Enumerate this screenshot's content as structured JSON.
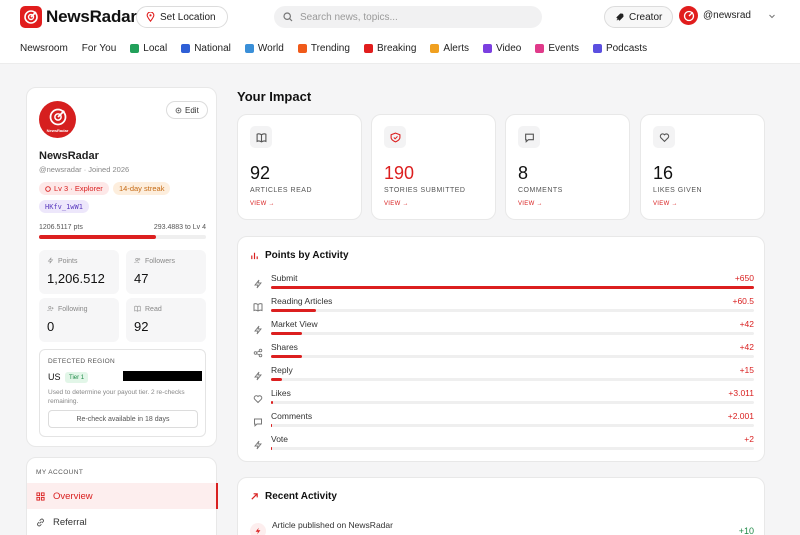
{
  "app": {
    "name": "NewsRadar"
  },
  "header": {
    "location_label": "Set Location",
    "search_placeholder": "Search news, topics...",
    "creator_label": "Creator",
    "user_handle": "@newsrad"
  },
  "nav": [
    {
      "label": "Newsroom",
      "icon": "none",
      "color": ""
    },
    {
      "label": "For You",
      "icon": "none",
      "color": ""
    },
    {
      "label": "Local",
      "icon": "local-icon",
      "color": "#22a05a"
    },
    {
      "label": "National",
      "icon": "flag-icon",
      "color": "#2f5fd6"
    },
    {
      "label": "World",
      "icon": "globe-icon",
      "color": "#3a8fd8"
    },
    {
      "label": "Trending",
      "icon": "fire-icon",
      "color": "#f05a1a"
    },
    {
      "label": "Breaking",
      "icon": "bolt-icon",
      "color": "#e11d1d"
    },
    {
      "label": "Alerts",
      "icon": "alert-icon",
      "color": "#f0a020"
    },
    {
      "label": "Video",
      "icon": "video-icon",
      "color": "#7b3fe0"
    },
    {
      "label": "Events",
      "icon": "calendar-icon",
      "color": "#e03a8a"
    },
    {
      "label": "Podcasts",
      "icon": "mic-icon",
      "color": "#5b4fe0"
    }
  ],
  "profile": {
    "name": "NewsRadar",
    "handle_line": "@newsradar · Joined 2026",
    "edit_label": "Edit",
    "level_badge": "Lv 3 · Explorer",
    "streak_badge": "14-day streak",
    "code_badge": "HKfv_1wW1",
    "points_text": "1206.5117 pts",
    "to_next_text": "293.4883 to Lv 4",
    "level_progress": 0.7,
    "stats": [
      {
        "label": "Points",
        "value": "1,206.512",
        "icon": "bolt-icon"
      },
      {
        "label": "Followers",
        "value": "47",
        "icon": "users-icon"
      },
      {
        "label": "Following",
        "value": "0",
        "icon": "user-plus-icon"
      },
      {
        "label": "Read",
        "value": "92",
        "icon": "book-icon"
      }
    ],
    "region": {
      "title": "DETECTED REGION",
      "code": "US",
      "tier": "Tier 1",
      "note": "Used to determine your payout tier. 2 re-checks remaining.",
      "recheck_label": "Re-check available in 18 days"
    }
  },
  "account": {
    "title": "MY ACCOUNT",
    "items": [
      {
        "label": "Overview",
        "active": true
      },
      {
        "label": "Referral",
        "active": false
      }
    ]
  },
  "impact": {
    "title": "Your Impact",
    "cards": [
      {
        "value": "92",
        "label": "ARTICLES READ",
        "link": "VIEW →",
        "icon": "book-icon",
        "accent": false
      },
      {
        "value": "190",
        "label": "STORIES SUBMITTED",
        "link": "VIEW →",
        "icon": "shield-icon",
        "accent": true
      },
      {
        "value": "8",
        "label": "COMMENTS",
        "link": "VIEW →",
        "icon": "comment-icon",
        "accent": false
      },
      {
        "value": "16",
        "label": "LIKES GIVEN",
        "link": "VIEW →",
        "icon": "heart-icon",
        "accent": false
      }
    ]
  },
  "activity": {
    "title": "Points by Activity",
    "rows": [
      {
        "name": "Submit",
        "value": "+650",
        "fraction": 1.0,
        "icon": "bolt-icon"
      },
      {
        "name": "Reading Articles",
        "value": "+60.5",
        "fraction": 0.093,
        "icon": "book-icon"
      },
      {
        "name": "Market View",
        "value": "+42",
        "fraction": 0.065,
        "icon": "bolt-icon"
      },
      {
        "name": "Shares",
        "value": "+42",
        "fraction": 0.065,
        "icon": "share-icon"
      },
      {
        "name": "Reply",
        "value": "+15",
        "fraction": 0.023,
        "icon": "bolt-icon"
      },
      {
        "name": "Likes",
        "value": "+3.011",
        "fraction": 0.005,
        "icon": "heart-icon"
      },
      {
        "name": "Comments",
        "value": "+2.001",
        "fraction": 0.003,
        "icon": "comment-icon"
      },
      {
        "name": "Vote",
        "value": "+2",
        "fraction": 0.003,
        "icon": "bolt-icon"
      }
    ]
  },
  "recent": {
    "title": "Recent Activity",
    "items": [
      {
        "text": "Article published on NewsRadar",
        "points": "+10"
      }
    ]
  },
  "colors": {
    "accent": "#dc1f1f",
    "positive": "#1f8a47"
  }
}
